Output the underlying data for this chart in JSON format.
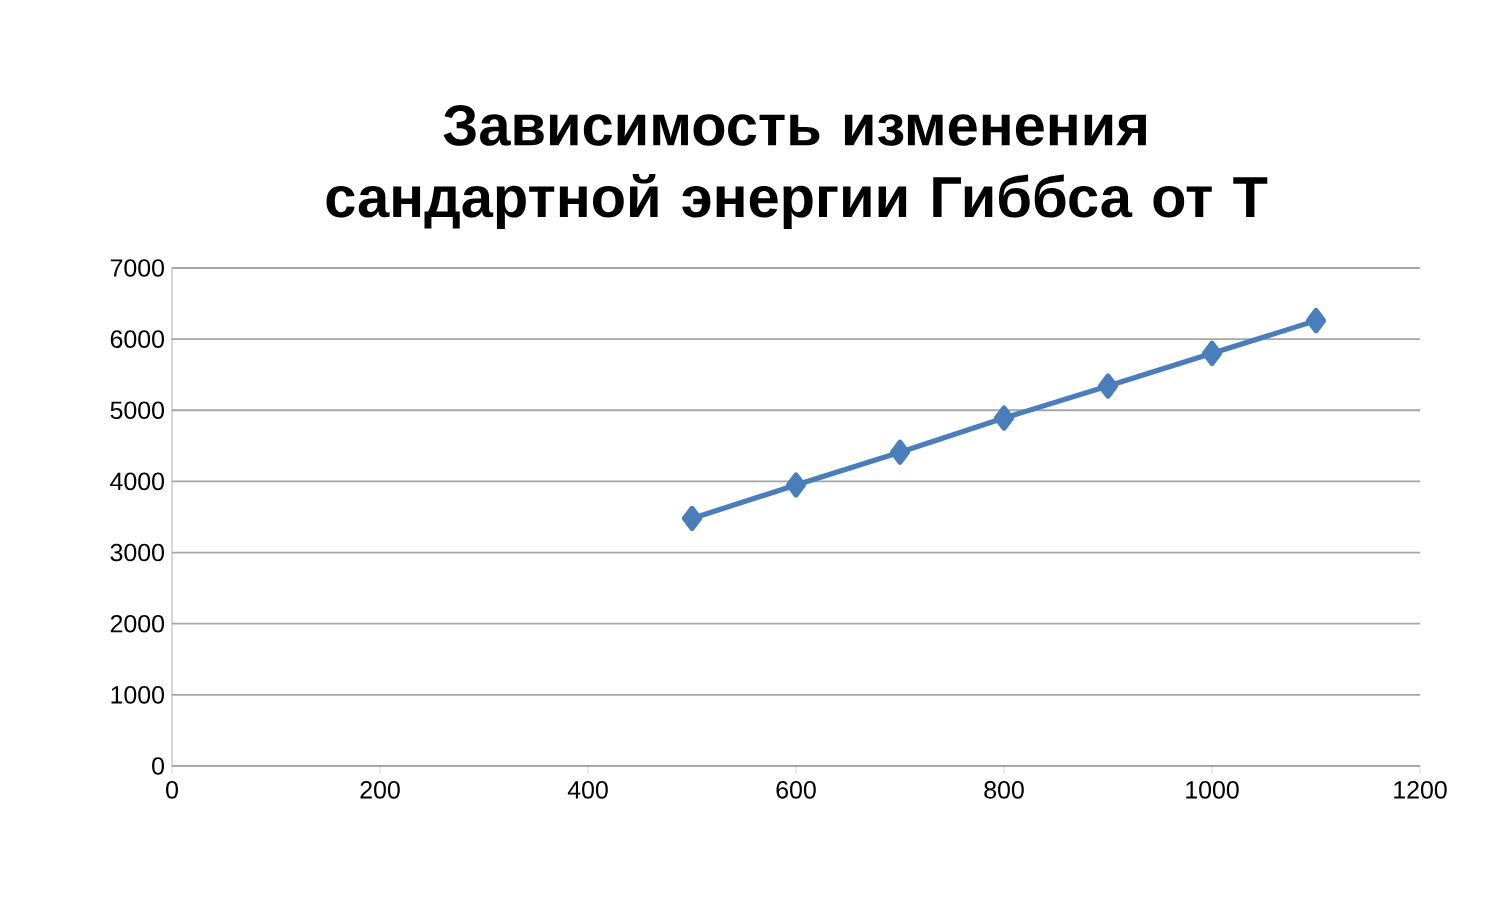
{
  "chart_data": {
    "type": "line",
    "title": "Зависимость  изменения сандартной энергии Гиббса от Т",
    "x": [
      500,
      600,
      700,
      800,
      900,
      1000,
      1100
    ],
    "series": [
      {
        "color": "#4a7ebb",
        "values": [
          3480,
          3950,
          4410,
          4890,
          5340,
          5800,
          6260
        ]
      }
    ],
    "xlim": [
      0,
      1200
    ],
    "xticks": [
      0,
      200,
      400,
      600,
      800,
      1000,
      1200
    ],
    "ylim": [
      0,
      7000
    ],
    "yticks": [
      0,
      1000,
      2000,
      3000,
      4000,
      5000,
      6000,
      7000
    ],
    "grid": "y",
    "marker": "diamond",
    "line_style": "solid"
  }
}
